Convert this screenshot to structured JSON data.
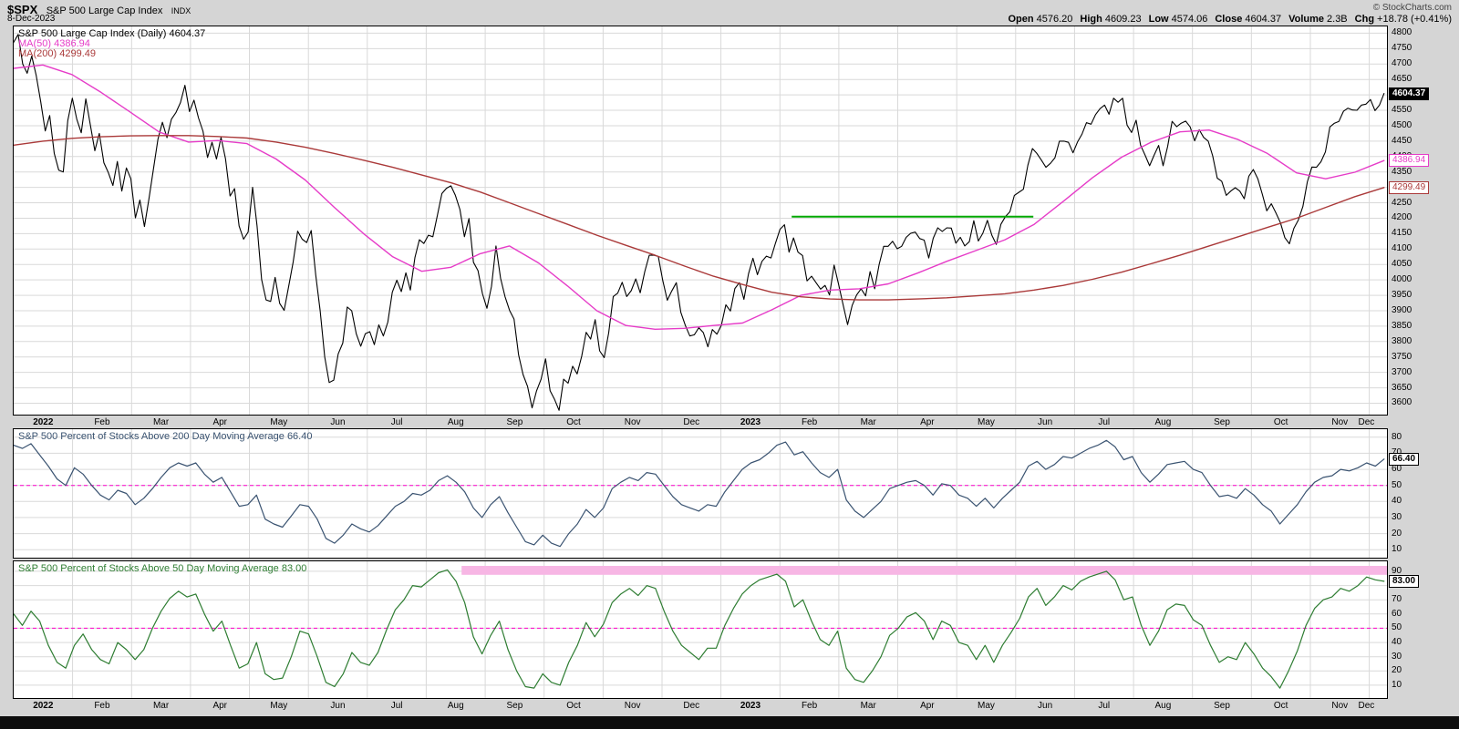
{
  "header": {
    "symbol": "$SPX",
    "name": "S&P 500 Large Cap Index",
    "exchange": "INDX",
    "date": "8-Dec-2023",
    "credit": "© StockCharts.com",
    "quote": [
      {
        "label": "Open",
        "value": "4576.20"
      },
      {
        "label": "High",
        "value": "4609.23"
      },
      {
        "label": "Low",
        "value": "4574.06"
      },
      {
        "label": "Close",
        "value": "4604.37"
      },
      {
        "label": "Volume",
        "value": "2.3B"
      },
      {
        "label": "Chg",
        "value": "+18.78 (+0.41%)"
      }
    ]
  },
  "colors": {
    "page_bg": "#d5d5d5",
    "panel_bg": "#ffffff",
    "grid": "#d9d9d9",
    "border": "#000000",
    "price": "#000000",
    "ma50": "#e63cc8",
    "ma200": "#aa3939",
    "pct200": "#3a5371",
    "pct50": "#2e7d32",
    "mid_dashed": "#ff00cc",
    "resistance_green": "#00a800",
    "overbought_band": "#f7b6e4"
  },
  "chart_data": {
    "x_axis": {
      "xlim": [
        0,
        23.3
      ],
      "labels": [
        "2022",
        "Feb",
        "Mar",
        "Apr",
        "May",
        "Jun",
        "Jul",
        "Aug",
        "Sep",
        "Oct",
        "Nov",
        "Dec",
        "2023",
        "Feb",
        "Mar",
        "Apr",
        "May",
        "Jun",
        "Jul",
        "Aug",
        "Sep",
        "Oct",
        "Nov",
        "Dec"
      ]
    },
    "panels": [
      {
        "name": "price",
        "type": "line",
        "ylim": [
          3563,
          4822
        ],
        "yticks": {
          "start": 3600,
          "end": 4800,
          "step": 50
        },
        "legend": [
          {
            "label": "S&P 500 Large Cap Index (Daily) 4604.37",
            "color": "#000000"
          },
          {
            "label": "MA(50) 4386.94",
            "color": "#e63cc8"
          },
          {
            "label": "MA(200) 4299.49",
            "color": "#aa3939"
          }
        ],
        "series": [
          {
            "name": "S&P 500 Large Cap Index (Daily)",
            "color": "#000000",
            "width": 1.1,
            "x_start": 0,
            "x_end": 23.25,
            "values": [
              4771,
              4796,
              4700,
              4670,
              4726,
              4663,
              4577,
              4483,
              4533,
              4410,
              4356,
              4350,
              4516,
              4589,
              4521,
              4477,
              4587,
              4504,
              4419,
              4475,
              4380,
              4348,
              4306,
              4384,
              4288,
              4363,
              4328,
              4201,
              4259,
              4173,
              4262,
              4358,
              4456,
              4511,
              4461,
              4521,
              4543,
              4575,
              4631,
              4546,
              4583,
              4525,
              4482,
              4397,
              4446,
              4392,
              4462,
              4393,
              4272,
              4296,
              4175,
              4132,
              4155,
              4300,
              4175,
              4001,
              3935,
              3930,
              4008,
              3924,
              3901,
              3978,
              4058,
              4158,
              4132,
              4121,
              4160,
              4017,
              3900,
              3750,
              3667,
              3675,
              3760,
              3795,
              3912,
              3900,
              3825,
              3785,
              3825,
              3832,
              3790,
              3854,
              3818,
              3863,
              3960,
              3999,
              3962,
              4023,
              3967,
              4072,
              4130,
              4118,
              4145,
              4140,
              4210,
              4280,
              4297,
              4305,
              4274,
              4228,
              4140,
              4199,
              4057,
              4030,
              3955,
              3908,
              3979,
              4110,
              4006,
              3946,
              3901,
              3873,
              3757,
              3693,
              3655,
              3585,
              3640,
              3678,
              3744,
              3640,
              3612,
              3577,
              3678,
              3665,
              3720,
              3695,
              3752,
              3830,
              3808,
              3871,
              3770,
              3748,
              3828,
              3946,
              3957,
              3992,
              3946,
              3965,
              4003,
              3958,
              4027,
              4080,
              4080,
              4076,
              3998,
              3934,
              3964,
              3991,
              3895,
              3852,
              3818,
              3822,
              3845,
              3829,
              3783,
              3839,
              3824,
              3853,
              3919,
              3899,
              3972,
              3991,
              3937,
              4019,
              4070,
              4017,
              4060,
              4077,
              4071,
              4119,
              4164,
              4179,
              4090,
              4136,
              4090,
              4079,
              3997,
              4012,
              3991,
              3970,
              3982,
              3951,
              4048,
              3986,
              3919,
              3855,
              3917,
              3951,
              3971,
              3948,
              4027,
              3971,
              4050,
              4109,
              4109,
              4125,
              4101,
              4109,
              4138,
              4151,
              4155,
              4134,
              4129,
              4071,
              4135,
              4169,
              4157,
              4169,
              4168,
              4119,
              4138,
              4110,
              4124,
              4192,
              4126,
              4151,
              4193,
              4145,
              4115,
              4180,
              4205,
              4221,
              4274,
              4284,
              4294,
              4372,
              4426,
              4410,
              4388,
              4365,
              4378,
              4396,
              4450,
              4450,
              4446,
              4412,
              4447,
              4473,
              4510,
              4505,
              4536,
              4555,
              4567,
              4537,
              4589,
              4576,
              4589,
              4502,
              4478,
              4518,
              4437,
              4404,
              4370,
              4405,
              4436,
              4370,
              4433,
              4514,
              4497,
              4508,
              4515,
              4496,
              4451,
              4487,
              4462,
              4450,
              4402,
              4330,
              4320,
              4274,
              4288,
              4299,
              4288,
              4263,
              4336,
              4358,
              4328,
              4278,
              4224,
              4247,
              4218,
              4186,
              4137,
              4117,
              4167,
              4194,
              4238,
              4318,
              4366,
              4365,
              4383,
              4415,
              4496,
              4508,
              4514,
              4547,
              4557,
              4551,
              4550,
              4567,
              4570,
              4585,
              4549,
              4567,
              4604.37
            ]
          },
          {
            "name": "MA(50)",
            "color": "#e63cc8",
            "width": 1.4,
            "x_start": 0,
            "x_end": 23.25,
            "values": [
              4686,
              4697,
              4666,
              4608,
              4544,
              4479,
              4447,
              4452,
              4442,
              4392,
              4324,
              4235,
              4150,
              4075,
              4028,
              4041,
              4085,
              4110,
              4055,
              3980,
              3900,
              3852,
              3840,
              3843,
              3852,
              3860,
              3903,
              3950,
              3967,
              3971,
              3987,
              4022,
              4060,
              4095,
              4130,
              4180,
              4255,
              4331,
              4398,
              4446,
              4480,
              4486,
              4455,
              4410,
              4347,
              4328,
              4349,
              4386.94
            ]
          },
          {
            "name": "MA(200)",
            "color": "#aa3939",
            "width": 1.4,
            "x_start": 0,
            "x_end": 23.25,
            "values": [
              4437,
              4450,
              4459,
              4464,
              4467,
              4468,
              4468,
              4465,
              4460,
              4447,
              4430,
              4410,
              4388,
              4365,
              4340,
              4315,
              4285,
              4250,
              4215,
              4180,
              4145,
              4112,
              4080,
              4045,
              4012,
              3985,
              3960,
              3945,
              3938,
              3935,
              3935,
              3938,
              3942,
              3948,
              3955,
              3967,
              3982,
              4002,
              4025,
              4052,
              4080,
              4110,
              4140,
              4170,
              4200,
              4235,
              4270,
              4299.49
            ]
          }
        ],
        "annotations": [
          {
            "type": "hseg",
            "y": 4205,
            "x1": 13.2,
            "x2": 17.3,
            "color": "#00a800",
            "width": 2
          }
        ],
        "last_labels": [
          {
            "text": "4604.37",
            "value": 4604.37,
            "bg": "#000000",
            "fg": "#ffffff",
            "border": "#000000",
            "bold": true
          },
          {
            "text": "4386.94",
            "value": 4386.94,
            "bg": "#ffffff",
            "fg": "#e63cc8",
            "border": "#e63cc8",
            "bold": false
          },
          {
            "text": "4299.49",
            "value": 4299.49,
            "bg": "#ffffff",
            "fg": "#aa3939",
            "border": "#aa3939",
            "bold": false
          }
        ]
      },
      {
        "name": "pct-above-200dma",
        "type": "line",
        "title": "S&P 500 Percent of Stocks Above 200 Day Moving Average 66.40",
        "ylim": [
          5,
          85
        ],
        "yticks": {
          "start": 10,
          "end": 80,
          "step": 10
        },
        "series": [
          {
            "name": "S&P 500 Percent of Stocks Above 200 Day Moving Average",
            "color": "#3a5371",
            "width": 1.2,
            "x_start": 0,
            "x_end": 23.25,
            "values": [
              75,
              73,
              76,
              69,
              62,
              54,
              50,
              61,
              57,
              50,
              44,
              41,
              47,
              45,
              38,
              42,
              48,
              55,
              61,
              64,
              62,
              64,
              57,
              52,
              55,
              46,
              37,
              38,
              44,
              29,
              26,
              24,
              31,
              38,
              37,
              29,
              17,
              14,
              19,
              26,
              23,
              21,
              25,
              31,
              37,
              40,
              45,
              44,
              47,
              53,
              56,
              52,
              46,
              36,
              30,
              38,
              43,
              33,
              24,
              15,
              13,
              19,
              14,
              12,
              20,
              26,
              35,
              30,
              36,
              48,
              52,
              55,
              53,
              58,
              57,
              50,
              43,
              38,
              36,
              34,
              38,
              37,
              46,
              53,
              60,
              64,
              66,
              70,
              75,
              77,
              69,
              71,
              64,
              58,
              55,
              60,
              41,
              34,
              30,
              35,
              40,
              48,
              50,
              52,
              53,
              50,
              44,
              51,
              50,
              44,
              42,
              37,
              42,
              36,
              42,
              47,
              52,
              62,
              65,
              60,
              63,
              68,
              67,
              70,
              73,
              75,
              78,
              74,
              66,
              68,
              58,
              52,
              57,
              63,
              64,
              65,
              60,
              58,
              50,
              43,
              44,
              42,
              48,
              44,
              38,
              34,
              26,
              32,
              38,
              46,
              52,
              55,
              56,
              60,
              59,
              61,
              64,
              62,
              66.4
            ]
          }
        ],
        "annotations": [
          {
            "type": "hline",
            "y": 50,
            "color": "#ff00cc",
            "width": 1,
            "dash": "4,3"
          }
        ],
        "last_labels": [
          {
            "text": "66.40",
            "value": 66.4,
            "bg": "#ffffff",
            "fg": "#000000",
            "border": "#000000",
            "bold": true
          }
        ]
      },
      {
        "name": "pct-above-50dma",
        "type": "line",
        "title": "S&P 500 Percent of Stocks Above 50 Day Moving Average 83.00",
        "ylim": [
          1,
          97
        ],
        "yticks": {
          "start": 10,
          "end": 90,
          "step": 10
        },
        "series": [
          {
            "name": "S&P 500 Percent of Stocks Above 50 Day Moving Average",
            "color": "#2e7d32",
            "width": 1.2,
            "x_start": 0,
            "x_end": 23.25,
            "values": [
              60,
              52,
              62,
              55,
              38,
              26,
              22,
              38,
              46,
              35,
              28,
              25,
              40,
              35,
              28,
              35,
              50,
              62,
              71,
              76,
              72,
              74,
              60,
              48,
              55,
              38,
              22,
              25,
              40,
              18,
              14,
              15,
              30,
              48,
              46,
              30,
              12,
              9,
              18,
              33,
              26,
              24,
              33,
              49,
              63,
              70,
              80,
              79,
              84,
              89,
              91,
              83,
              68,
              44,
              32,
              45,
              55,
              35,
              20,
              9,
              8,
              18,
              12,
              10,
              26,
              38,
              54,
              44,
              53,
              68,
              74,
              78,
              73,
              80,
              78,
              62,
              48,
              38,
              33,
              28,
              36,
              36,
              52,
              64,
              74,
              80,
              84,
              86,
              88,
              83,
              65,
              70,
              55,
              42,
              38,
              48,
              22,
              14,
              12,
              20,
              30,
              45,
              50,
              58,
              61,
              55,
              42,
              55,
              52,
              40,
              38,
              28,
              38,
              26,
              38,
              47,
              57,
              72,
              78,
              66,
              72,
              80,
              77,
              83,
              86,
              88,
              90,
              84,
              70,
              72,
              52,
              38,
              48,
              63,
              67,
              66,
              56,
              52,
              38,
              26,
              30,
              28,
              40,
              32,
              22,
              16,
              8,
              20,
              34,
              52,
              64,
              70,
              72,
              78,
              76,
              80,
              86,
              84,
              83
            ]
          }
        ],
        "annotations": [
          {
            "type": "band",
            "x1": 7.6,
            "x2": 23.3,
            "y1": 87.5,
            "y2": 93.8,
            "fill": "#f7b6e4"
          },
          {
            "type": "hline",
            "y": 50,
            "color": "#ff00cc",
            "width": 1,
            "dash": "4,3"
          }
        ],
        "last_labels": [
          {
            "text": "83.00",
            "value": 83.0,
            "bg": "#ffffff",
            "fg": "#000000",
            "border": "#000000",
            "bold": true
          }
        ]
      }
    ]
  }
}
